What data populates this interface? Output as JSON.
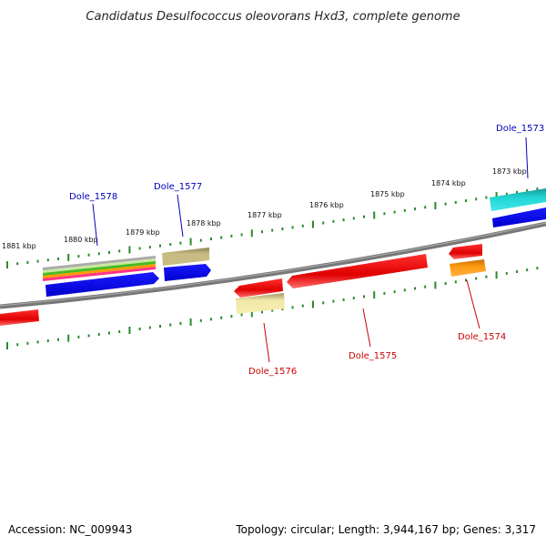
{
  "title": "Candidatus Desulfococcus oleovorans Hxd3, complete genome",
  "footer": {
    "accession": "Accession: NC_009943",
    "topology": "Topology: circular; Length: 3,944,167 bp; Genes: 3,317"
  },
  "ticks": [
    "1873 kbp",
    "1874 kbp",
    "1875 kbp",
    "1876 kbp",
    "1877 kbp",
    "1878 kbp",
    "1879 kbp",
    "1880 kbp",
    "1881 kbp"
  ],
  "genes": [
    {
      "id": "Dole_1573",
      "strand": "forward",
      "color": "#0000ee"
    },
    {
      "id": "Dole_1574",
      "strand": "reverse",
      "color": "#ee0000"
    },
    {
      "id": "Dole_1575",
      "strand": "reverse",
      "color": "#ee0000"
    },
    {
      "id": "Dole_1576",
      "strand": "reverse",
      "color": "#ee0000"
    },
    {
      "id": "Dole_1577",
      "strand": "forward",
      "color": "#0000ee"
    },
    {
      "id": "Dole_1578",
      "strand": "forward",
      "color": "#0000ee"
    }
  ]
}
